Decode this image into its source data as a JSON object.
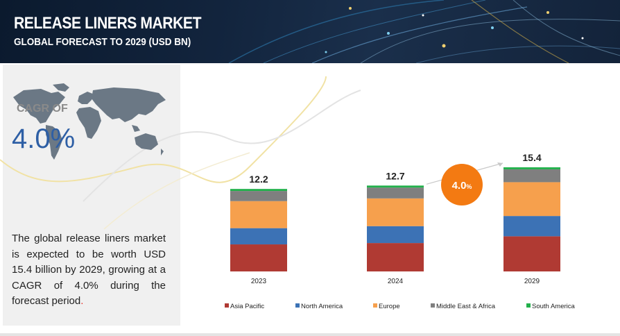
{
  "header": {
    "title": "RELEASE LINERS MARKET",
    "subtitle": "GLOBAL FORECAST TO 2029 (USD BN)"
  },
  "left_panel": {
    "cagr_label": "CAGR OF",
    "cagr_value": "4.0%",
    "description": "The global release liners market is expected to be worth USD   15.4 billion by 2029, growing at a CAGR of 4.0% during the forecast period",
    "description_end": "."
  },
  "badge": {
    "number": "4.0",
    "unit": "%"
  },
  "colors": {
    "asia_pacific": "#b03a33",
    "north_america": "#3c72b5",
    "europe": "#f6a04d",
    "middle_east_africa": "#7f7f7f",
    "south_america": "#22b04b",
    "badge": "#f37a12",
    "accent_blue": "#2e5fa5"
  },
  "chart_data": {
    "type": "bar",
    "stacked": true,
    "categories": [
      "2023",
      "2024",
      "2029"
    ],
    "totals": [
      "12.2",
      "12.7",
      "15.4"
    ],
    "series": [
      {
        "name": "Asia Pacific",
        "values": [
          4.0,
          4.2,
          5.2
        ]
      },
      {
        "name": "North America",
        "values": [
          2.4,
          2.5,
          3.0
        ]
      },
      {
        "name": "Europe",
        "values": [
          4.0,
          4.1,
          5.0
        ]
      },
      {
        "name": "Middle East & Africa",
        "values": [
          1.5,
          1.6,
          1.9
        ]
      },
      {
        "name": "South America",
        "values": [
          0.3,
          0.3,
          0.3
        ]
      }
    ],
    "ylim": [
      0,
      16
    ],
    "grid": false,
    "legend_position": "bottom",
    "annotation": "4.0%"
  }
}
